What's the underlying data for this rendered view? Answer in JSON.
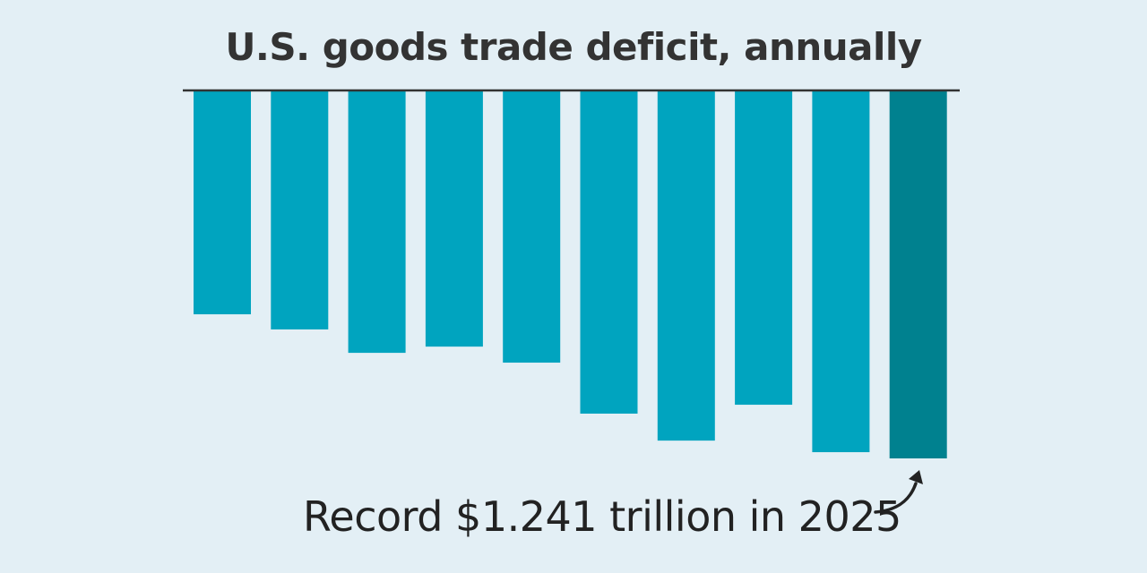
{
  "chart_data": {
    "type": "bar",
    "title": "U.S. goods trade deficit, annually",
    "xlabel": "",
    "ylabel": "",
    "values": [
      0.755,
      0.806,
      0.885,
      0.864,
      0.918,
      1.09,
      1.181,
      1.06,
      1.22,
      1.241
    ],
    "units": "trillion dollars (bars extend downward as deficit)",
    "ylim": [
      0,
      1.241
    ],
    "grid": false,
    "colors": {
      "bar": "#00a4bf",
      "highlight": "#00818f",
      "baseline": "#333333",
      "background": "#e3eff5"
    },
    "highlight_index": 9,
    "annotation": "Record $1.241 trillion in 2025"
  }
}
